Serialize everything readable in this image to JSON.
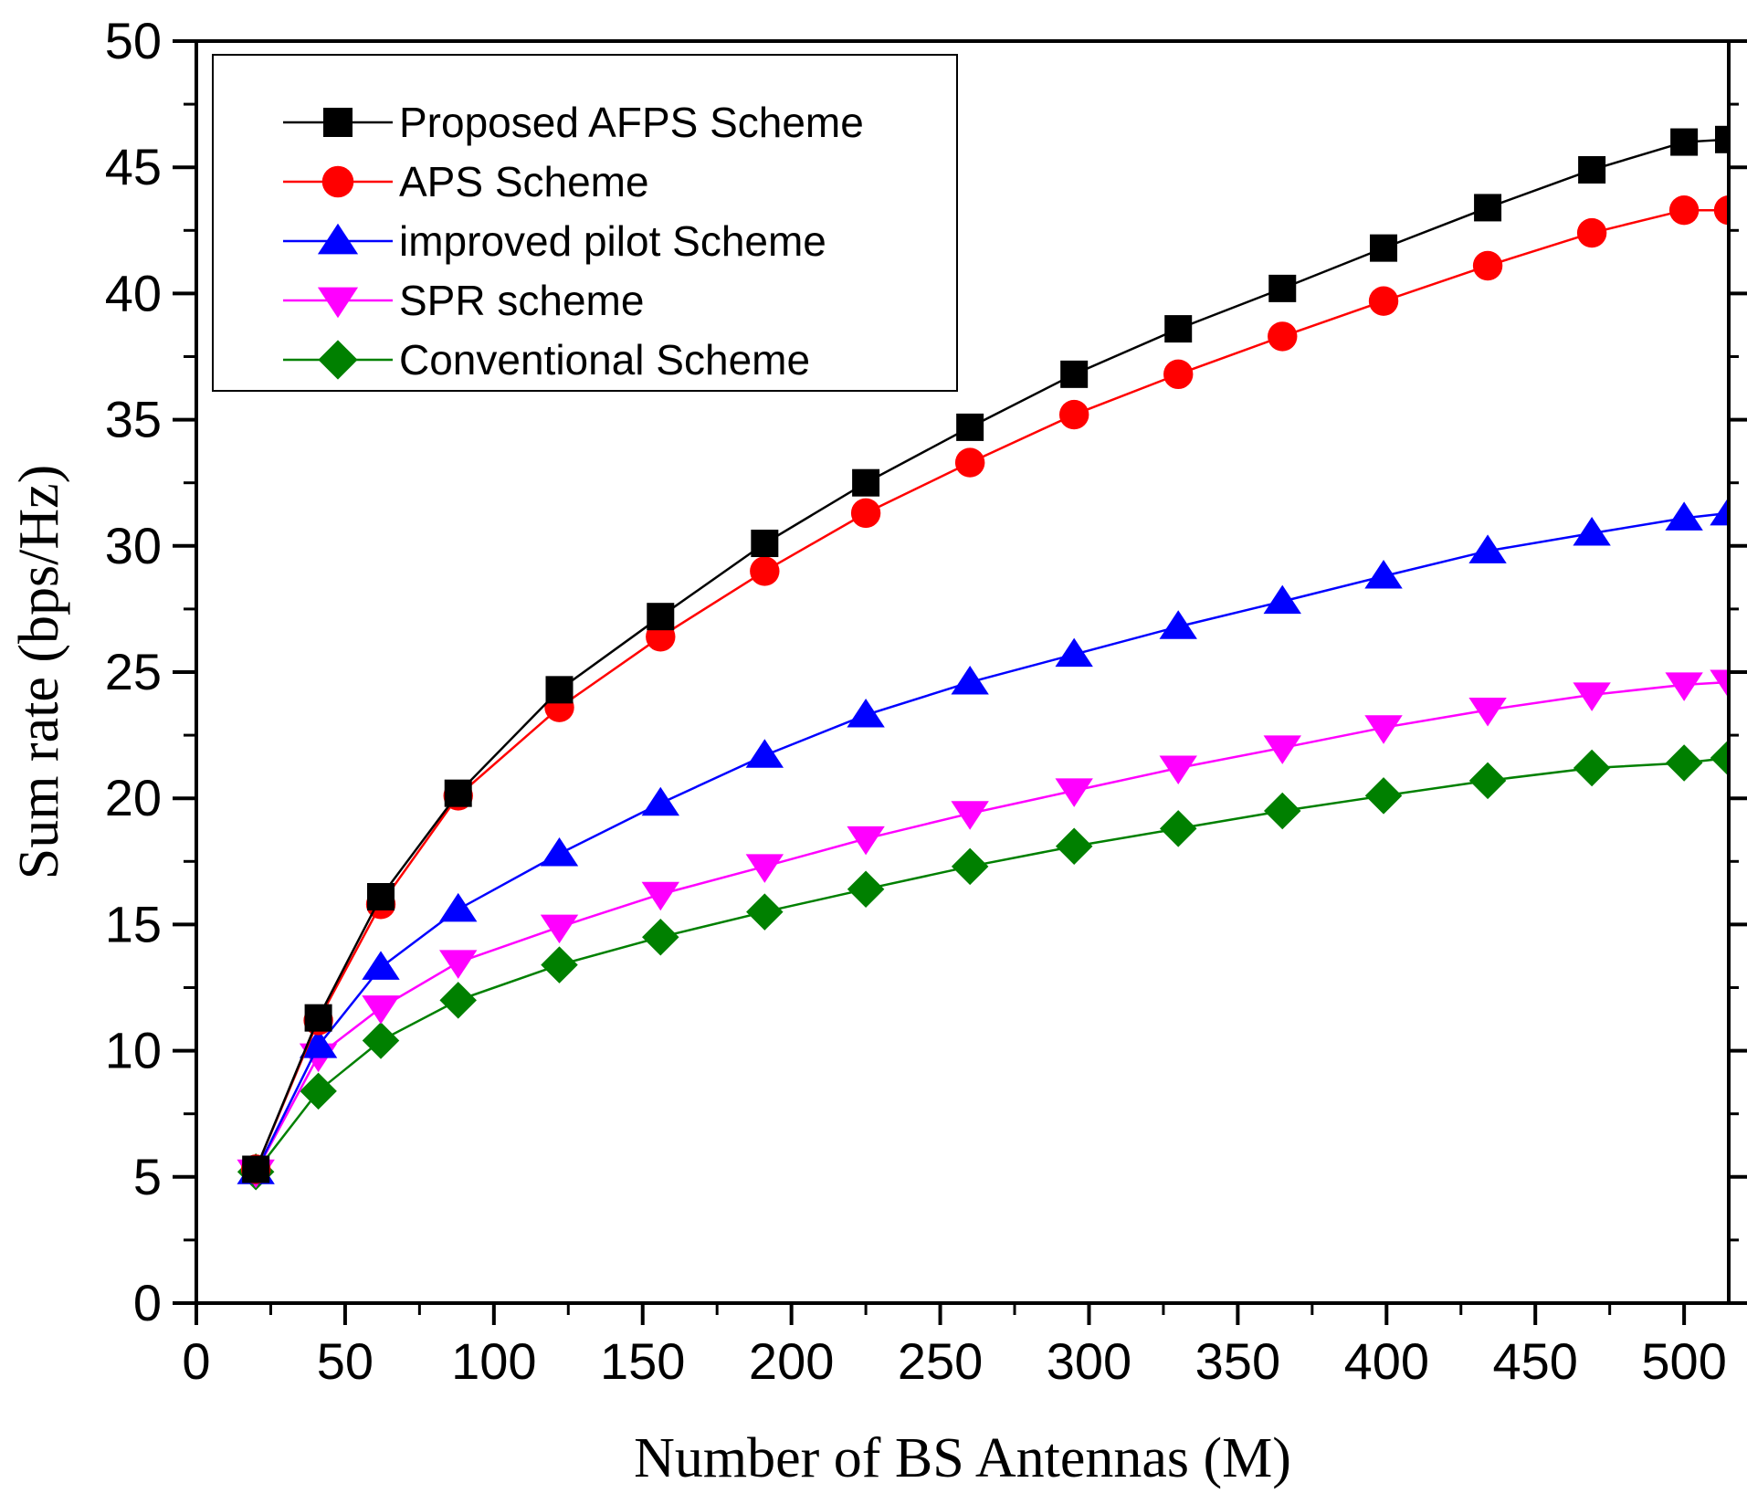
{
  "chart_data": {
    "type": "line",
    "title": "",
    "xlabel": "Number of BS Antennas (M)",
    "ylabel": "Sum rate (bps/Hz)",
    "xlim": [
      0,
      515
    ],
    "ylim": [
      0,
      50
    ],
    "xticks": [
      0,
      50,
      100,
      150,
      200,
      250,
      300,
      350,
      400,
      450,
      500
    ],
    "yticks": [
      0,
      5,
      10,
      15,
      20,
      25,
      30,
      35,
      40,
      45,
      50
    ],
    "x": [
      20,
      41,
      62,
      88,
      122,
      156,
      191,
      225,
      260,
      295,
      330,
      365,
      399,
      434,
      469,
      500,
      515
    ],
    "legend_position": "top-left",
    "series": [
      {
        "name": "Proposed AFPS Scheme",
        "color": "#000000",
        "marker": "square",
        "values": [
          5.3,
          11.3,
          16.1,
          20.2,
          24.3,
          27.2,
          30.1,
          32.5,
          34.7,
          36.8,
          38.6,
          40.2,
          41.8,
          43.4,
          44.9,
          46.0,
          46.1
        ]
      },
      {
        "name": "APS Scheme",
        "color": "#ff0000",
        "marker": "circle",
        "values": [
          5.3,
          11.2,
          15.8,
          20.1,
          23.6,
          26.4,
          29.0,
          31.3,
          33.3,
          35.2,
          36.8,
          38.3,
          39.7,
          41.1,
          42.4,
          43.3,
          43.3
        ]
      },
      {
        "name": "improved pilot Scheme",
        "color": "#0000ff",
        "marker": "triangle-up",
        "values": [
          5.2,
          10.2,
          13.3,
          15.6,
          17.8,
          19.8,
          21.7,
          23.3,
          24.6,
          25.7,
          26.8,
          27.8,
          28.8,
          29.8,
          30.5,
          31.1,
          31.3
        ]
      },
      {
        "name": "SPR scheme",
        "color": "#ff00ff",
        "marker": "triangle-down",
        "values": [
          5.2,
          9.8,
          11.7,
          13.5,
          14.9,
          16.2,
          17.3,
          18.4,
          19.4,
          20.3,
          21.2,
          22.0,
          22.8,
          23.5,
          24.1,
          24.5,
          24.6
        ]
      },
      {
        "name": "Conventional Scheme",
        "color": "#008000",
        "marker": "diamond",
        "values": [
          5.2,
          8.4,
          10.4,
          12.0,
          13.4,
          14.5,
          15.5,
          16.4,
          17.3,
          18.1,
          18.8,
          19.5,
          20.1,
          20.7,
          21.2,
          21.4,
          21.6
        ]
      }
    ]
  }
}
